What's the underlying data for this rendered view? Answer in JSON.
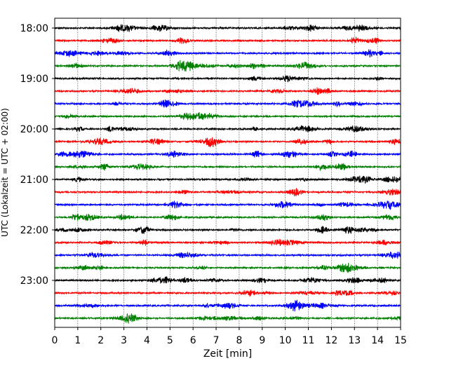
{
  "chart_data": {
    "type": "line",
    "title": "",
    "xlabel": "Zeit  [min]",
    "ylabel": "UTC (Lokalzeit = UTC + 02:00)",
    "xlim": [
      0,
      15
    ],
    "x_ticks": [
      "0",
      "1",
      "2",
      "3",
      "4",
      "5",
      "6",
      "7",
      "8",
      "9",
      "10",
      "11",
      "12",
      "13",
      "14",
      "15"
    ],
    "y_tick_labels": [
      "18:00",
      "19:00",
      "20:00",
      "21:00",
      "22:00",
      "23:00"
    ],
    "y_tick_times_hours": [
      18,
      19,
      20,
      21,
      22,
      23
    ],
    "trace_interval_minutes": 15,
    "trace_start_hours": 18.0,
    "trace_count": 24,
    "trace_colors": [
      "#000000",
      "#ff0000",
      "#0000ff",
      "#007f00"
    ],
    "grid": "vertical dotted at each minute",
    "legend": "none"
  }
}
